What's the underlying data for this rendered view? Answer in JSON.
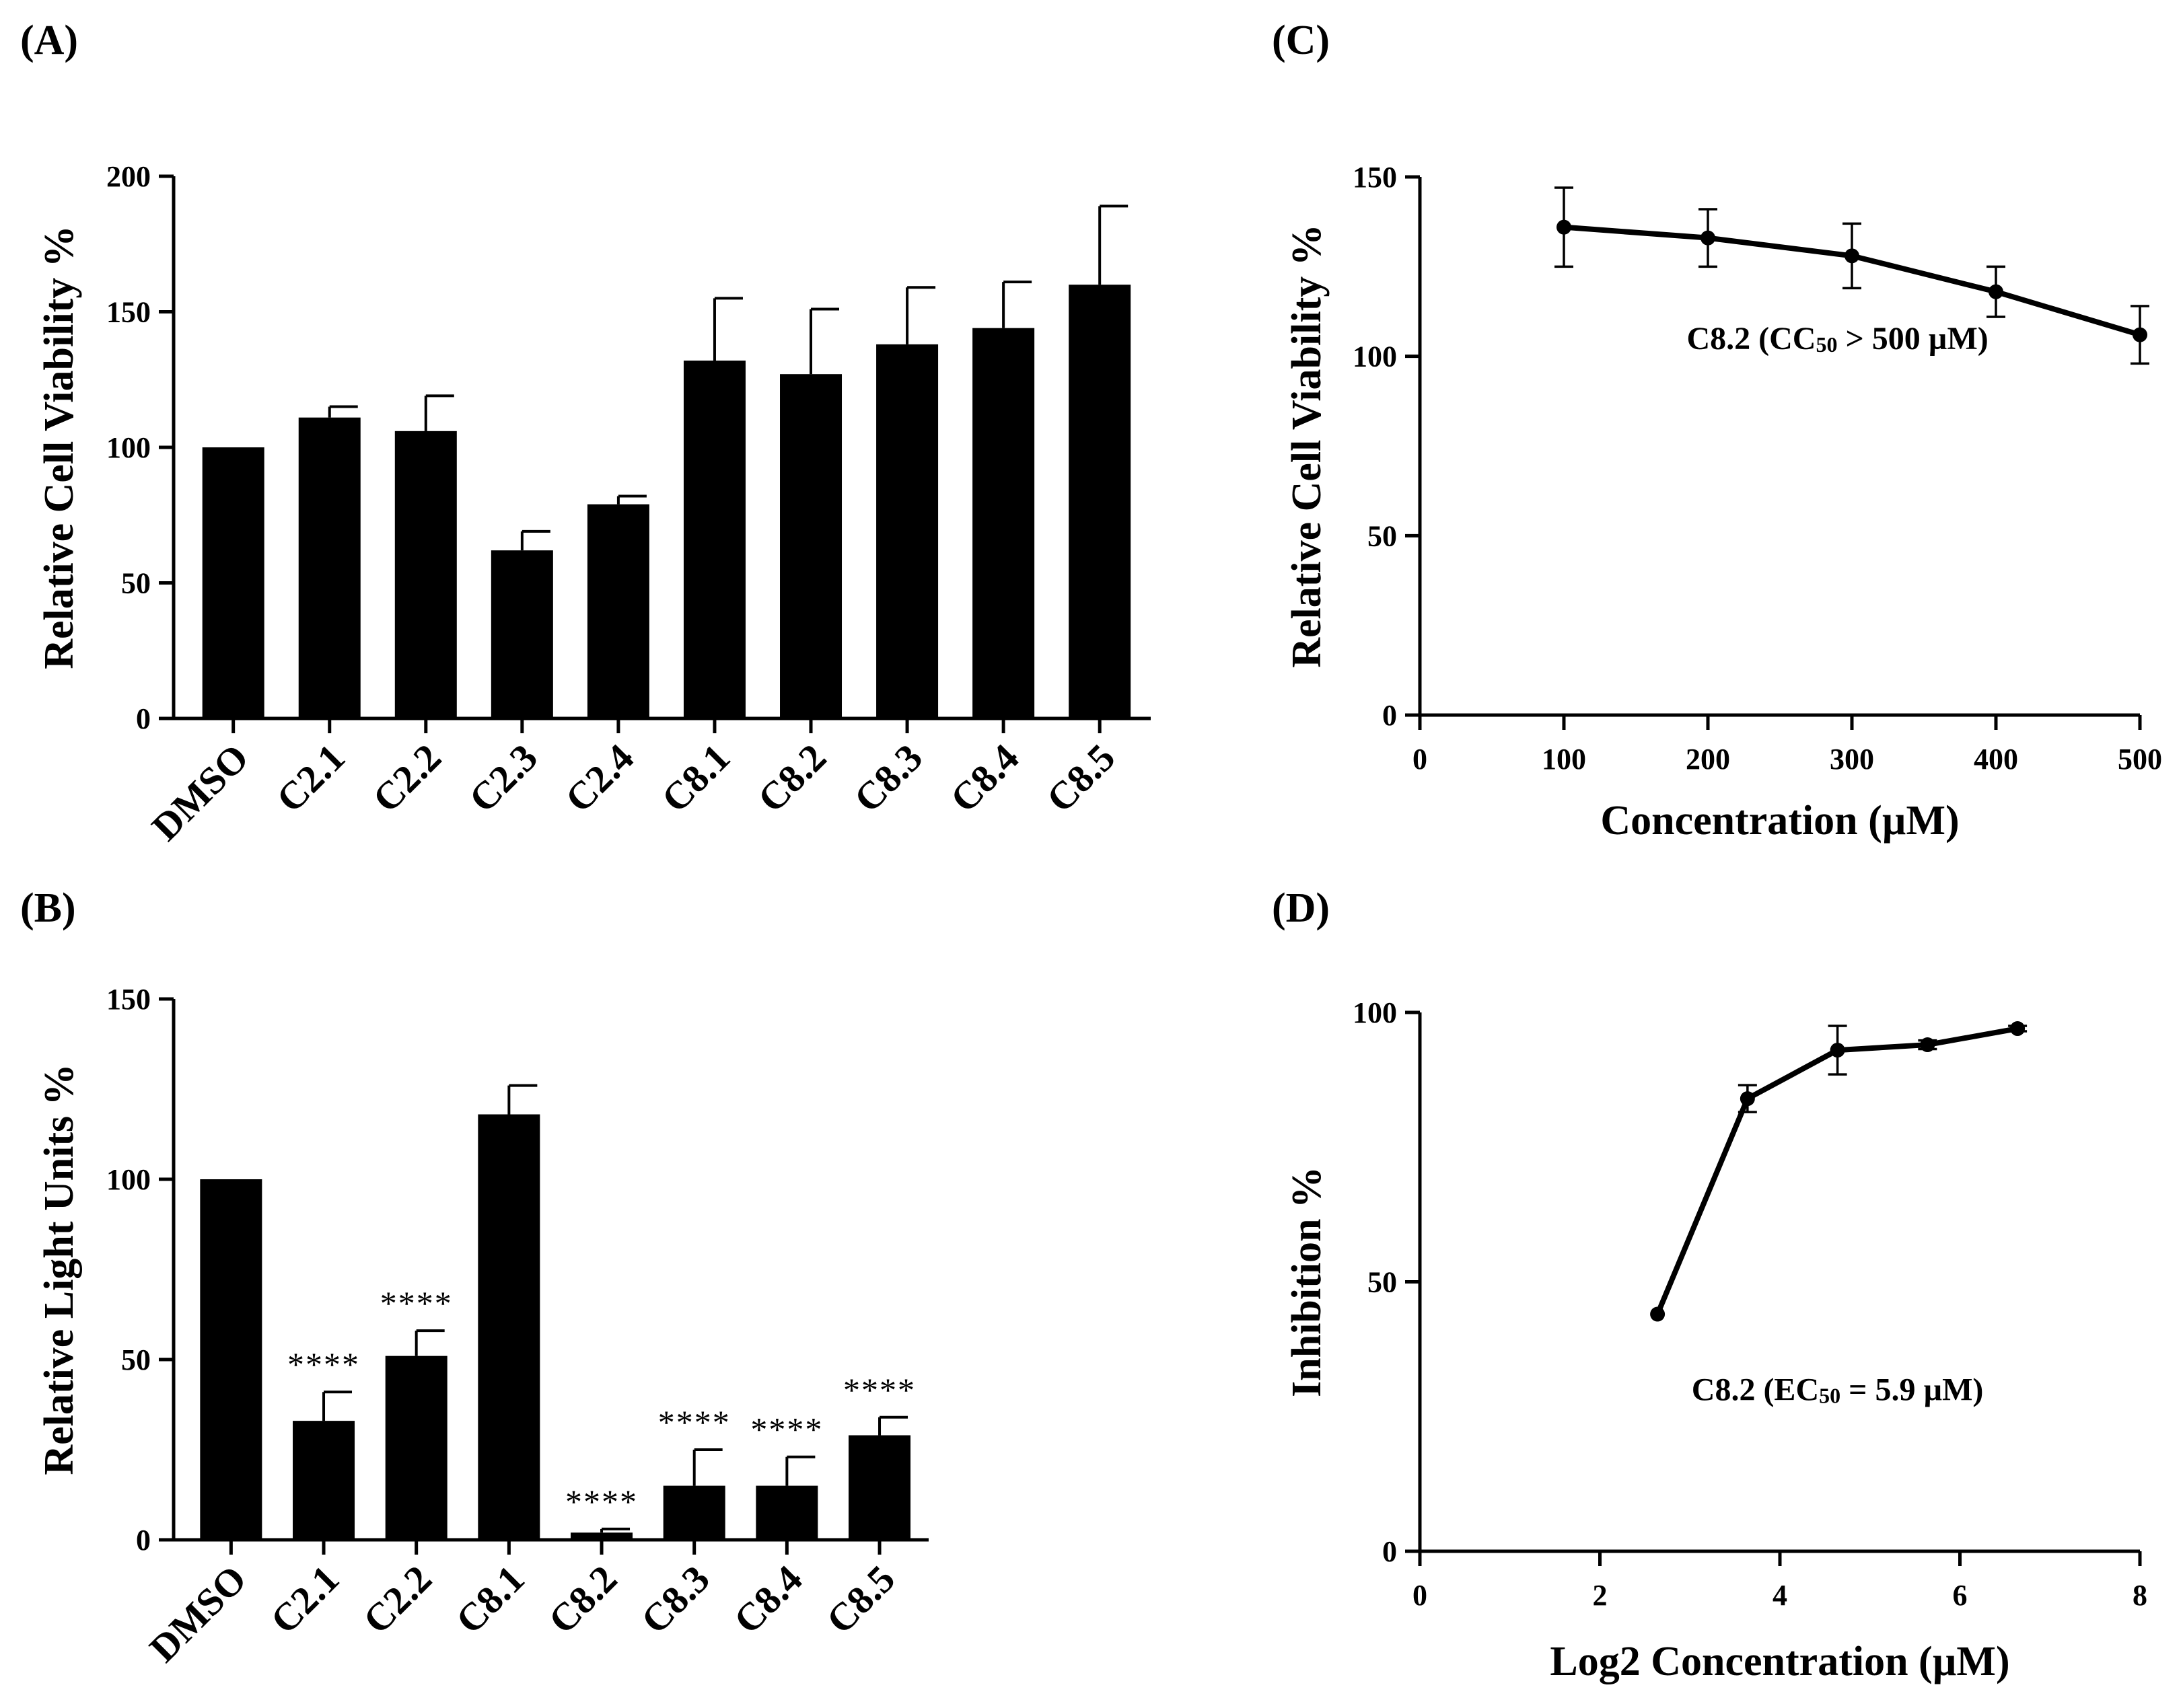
{
  "chart_data": [
    {
      "panel": "(A)",
      "type": "bar",
      "categories": [
        "DMSO",
        "C2.1",
        "C2.2",
        "C2.3",
        "C2.4",
        "C8.1",
        "C8.2",
        "C8.3",
        "C8.4",
        "C8.5"
      ],
      "values": [
        100,
        111,
        106,
        62,
        79,
        132,
        127,
        138,
        144,
        160
      ],
      "errors": [
        0,
        4,
        13,
        7,
        3,
        23,
        24,
        21,
        17,
        29
      ],
      "ylabel": "Relative Cell Viability %",
      "xlabel": "",
      "ylim": [
        0,
        200
      ],
      "yticks": [
        0,
        50,
        100,
        150,
        200
      ]
    },
    {
      "panel": "(B)",
      "type": "bar",
      "categories": [
        "DMSO",
        "C2.1",
        "C2.2",
        "C8.1",
        "C8.2",
        "C8.3",
        "C8.4",
        "C8.5"
      ],
      "values": [
        100,
        33,
        51,
        118,
        2,
        15,
        15,
        29
      ],
      "errors": [
        0,
        8,
        7,
        8,
        1,
        10,
        8,
        5
      ],
      "significance": [
        "",
        "****",
        "****",
        "",
        "****",
        "****",
        "****",
        "****"
      ],
      "ylabel": "Relative Light Units %",
      "xlabel": "",
      "ylim": [
        0,
        150
      ],
      "yticks": [
        0,
        50,
        100,
        150
      ]
    },
    {
      "panel": "(C)",
      "type": "line",
      "x": [
        100,
        200,
        300,
        400,
        500
      ],
      "y": [
        136,
        133,
        128,
        118,
        106
      ],
      "errors": [
        11,
        8,
        9,
        7,
        8
      ],
      "annotation": {
        "prefix": "C8.2 (CC",
        "sub": "50",
        "suffix": " > 500 µM)"
      },
      "ylabel": "Relative Cell Viability %",
      "xlabel": "Concentration (µM)",
      "xlim": [
        0,
        500
      ],
      "ylim": [
        0,
        150
      ],
      "xticks": [
        0,
        100,
        200,
        300,
        400,
        500
      ],
      "yticks": [
        0,
        50,
        100,
        150
      ]
    },
    {
      "panel": "(D)",
      "type": "line",
      "x": [
        2.64,
        3.64,
        4.64,
        5.64,
        6.64
      ],
      "y": [
        44,
        84,
        93,
        94,
        97
      ],
      "errors": [
        0,
        2.5,
        4.5,
        0.8,
        0.5
      ],
      "annotation": {
        "prefix": "C8.2 (EC",
        "sub": "50",
        "suffix": " = 5.9 µM)"
      },
      "ylabel": "Inhibition %",
      "xlabel": "Log2 Concentration (µM)",
      "xlim": [
        0,
        8
      ],
      "ylim": [
        0,
        100
      ],
      "xticks": [
        0,
        2,
        4,
        6,
        8
      ],
      "yticks": [
        0,
        50,
        100
      ]
    }
  ]
}
